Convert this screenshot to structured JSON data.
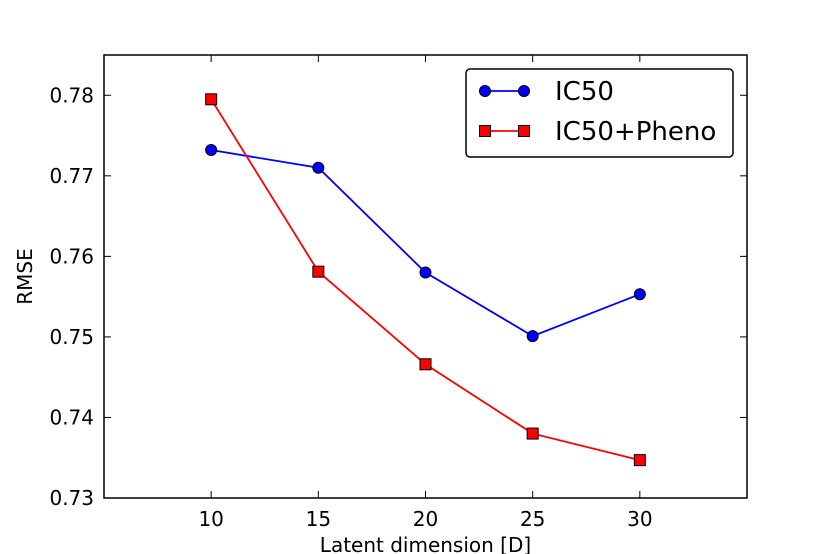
{
  "chart_data": {
    "type": "line",
    "title": "",
    "xlabel": "Latent dimension [D]",
    "ylabel": "RMSE",
    "xlim": [
      5,
      35
    ],
    "ylim": [
      0.73,
      0.785
    ],
    "xticks": [
      10,
      15,
      20,
      25,
      30
    ],
    "yticks": [
      0.73,
      0.74,
      0.75,
      0.76,
      0.77,
      0.78
    ],
    "xtick_labels": [
      "10",
      "15",
      "20",
      "25",
      "30"
    ],
    "ytick_labels": [
      "0.73",
      "0.74",
      "0.75",
      "0.76",
      "0.77",
      "0.78"
    ],
    "grid": false,
    "legend_position": "top-right",
    "x": [
      10,
      15,
      20,
      25,
      30
    ],
    "series": [
      {
        "name": "IC50",
        "values": [
          0.7732,
          0.771,
          0.758,
          0.7501,
          0.7553
        ],
        "color": "#0000ff",
        "marker": "circle"
      },
      {
        "name": "IC50+Pheno",
        "values": [
          0.7795,
          0.7581,
          0.7466,
          0.738,
          0.7347
        ],
        "color": "#ff0000",
        "marker": "square"
      }
    ]
  }
}
